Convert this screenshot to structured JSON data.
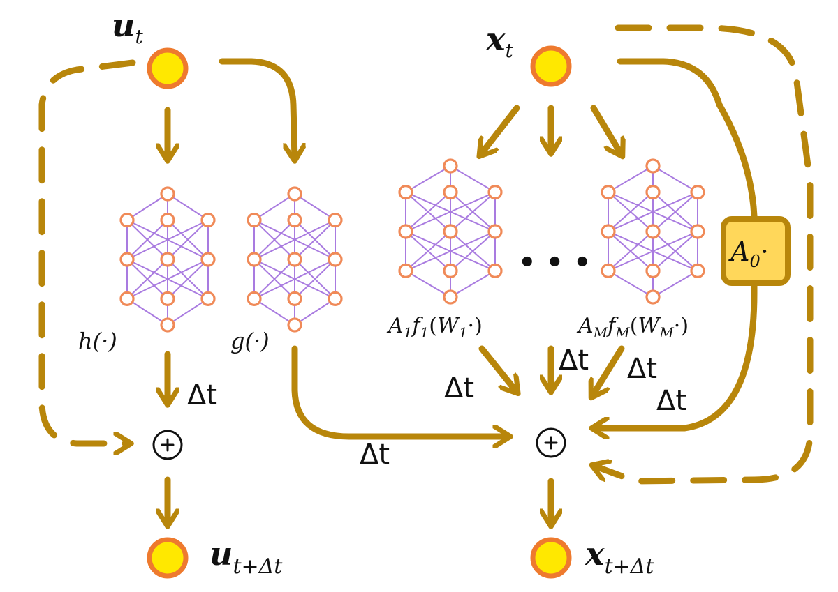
{
  "inputs": {
    "u_t": {
      "base": "u",
      "sub": "t"
    },
    "x_t": {
      "base": "x",
      "sub": "t"
    }
  },
  "outputs": {
    "u_next": {
      "base": "u",
      "sub": "t+Δt"
    },
    "x_next": {
      "base": "x",
      "sub": "t+Δt"
    }
  },
  "networks": {
    "h": "h(·)",
    "g": "g(·)",
    "f1": {
      "A": "A",
      "A_sub": "1",
      "f": "f",
      "f_sub": "1",
      "W": "W",
      "W_sub": "1"
    },
    "fM": {
      "A": "A",
      "A_sub": "M",
      "f": "f",
      "f_sub": "M",
      "W": "W",
      "W_sub": "M"
    },
    "ellipsis": "• • •"
  },
  "linear_block": {
    "base": "A",
    "sub": "0",
    "suffix": "·"
  },
  "sum_symbol": "+",
  "dt_label": "Δt",
  "colors": {
    "arrow": "#B8860B",
    "node_fill": "#FFE800",
    "node_stroke": "#EE7A2E",
    "net_edge": "#A97BE0",
    "net_node": "#F08A58",
    "a0_fill": "#FFD75A"
  }
}
